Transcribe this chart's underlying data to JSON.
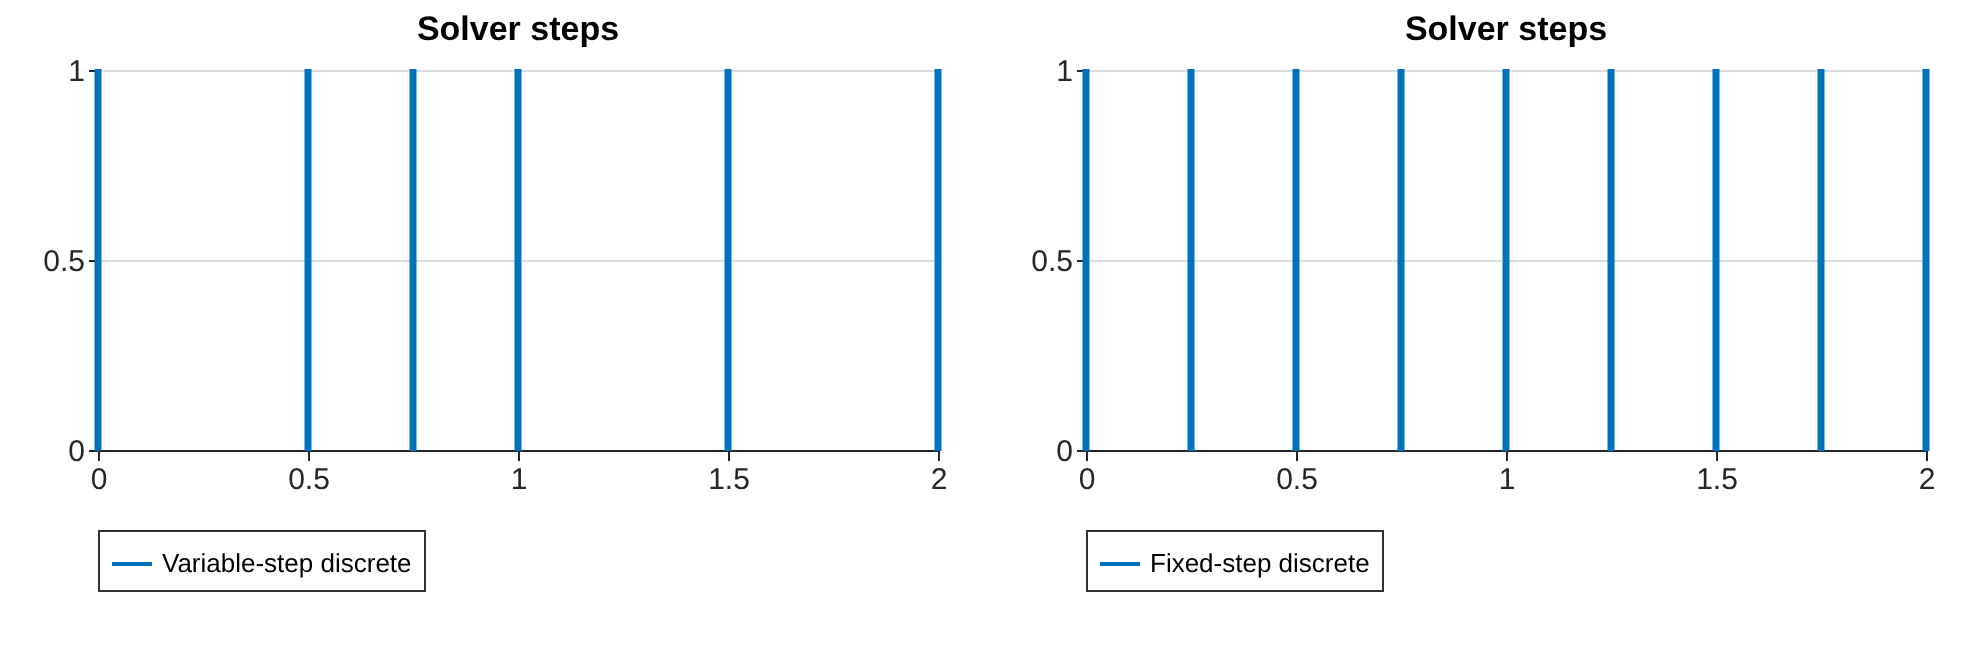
{
  "chart_data": [
    {
      "type": "bar",
      "title": "Solver steps",
      "x": [
        0,
        0.5,
        0.75,
        1,
        1.5,
        2
      ],
      "xlim": [
        0,
        2
      ],
      "xticks": [
        0,
        0.5,
        1,
        1.5,
        2
      ],
      "ylim": [
        0,
        1
      ],
      "yticks": [
        0,
        0.5,
        1
      ],
      "grid": true,
      "legend": "bottom",
      "series": [
        {
          "name": "Variable-step discrete",
          "color": "#0072bd",
          "values": [
            1,
            1,
            1,
            1,
            1,
            1
          ]
        }
      ]
    },
    {
      "type": "bar",
      "title": "Solver steps",
      "x": [
        0,
        0.25,
        0.5,
        0.75,
        1,
        1.25,
        1.5,
        1.75,
        2
      ],
      "xlim": [
        0,
        2
      ],
      "xticks": [
        0,
        0.5,
        1,
        1.5,
        2
      ],
      "ylim": [
        0,
        1
      ],
      "yticks": [
        0,
        0.5,
        1
      ],
      "grid": true,
      "legend": "bottom",
      "series": [
        {
          "name": "Fixed-step discrete",
          "color": "#0072bd",
          "values": [
            1,
            1,
            1,
            1,
            1,
            1,
            1,
            1,
            1
          ]
        }
      ]
    }
  ]
}
